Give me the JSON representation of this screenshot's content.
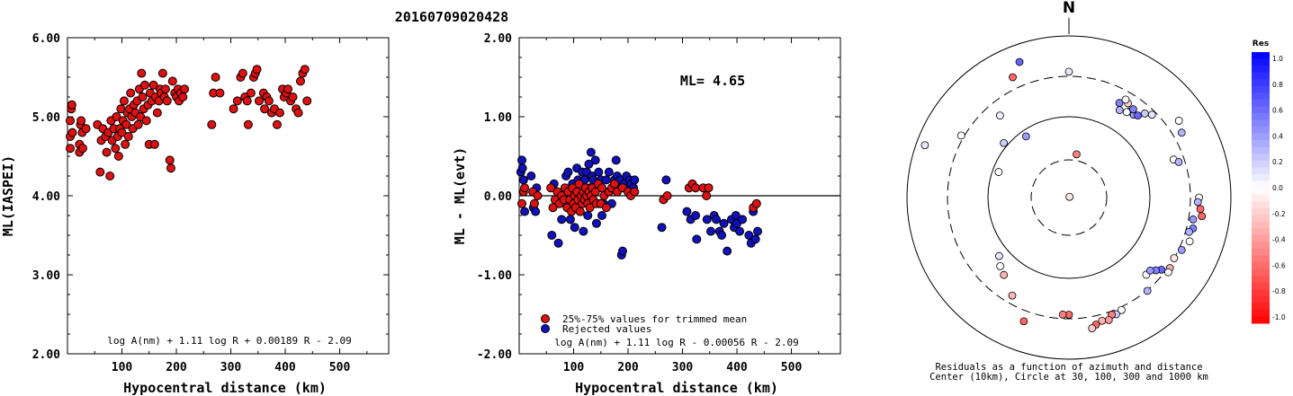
{
  "event_title": "20160709020428",
  "chart_data": [
    {
      "type": "scatter",
      "panel": "left",
      "xlabel": "Hypocentral distance (km)",
      "ylabel": "ML(IASPEI)",
      "xlim": [
        0,
        590
      ],
      "ylim": [
        2.0,
        6.0
      ],
      "x_ticks": [
        "100",
        "200",
        "300",
        "400",
        "500"
      ],
      "y_ticks": [
        "2.00",
        "3.00",
        "4.00",
        "5.00",
        "6.00"
      ],
      "formula": "log A(nm) + 1.11 log R + 0.00189 R - 2.09",
      "point_color": "#dd1111",
      "points": [
        [
          5,
          4.6
        ],
        [
          5,
          4.75
        ],
        [
          5,
          4.95
        ],
        [
          7,
          5.1
        ],
        [
          8,
          5.15
        ],
        [
          9,
          4.8
        ],
        [
          22,
          4.55
        ],
        [
          22,
          4.65
        ],
        [
          24,
          4.9
        ],
        [
          25,
          4.95
        ],
        [
          27,
          4.8
        ],
        [
          28,
          4.6
        ],
        [
          34,
          4.85
        ],
        [
          55,
          4.9
        ],
        [
          60,
          4.3
        ],
        [
          62,
          4.7
        ],
        [
          65,
          4.85
        ],
        [
          70,
          4.75
        ],
        [
          72,
          4.55
        ],
        [
          75,
          4.8
        ],
        [
          78,
          4.25
        ],
        [
          80,
          4.95
        ],
        [
          82,
          4.7
        ],
        [
          85,
          4.85
        ],
        [
          88,
          4.6
        ],
        [
          90,
          5.0
        ],
        [
          92,
          4.75
        ],
        [
          94,
          4.5
        ],
        [
          96,
          4.85
        ],
        [
          98,
          5.1
        ],
        [
          100,
          4.8
        ],
        [
          102,
          4.95
        ],
        [
          104,
          5.2
        ],
        [
          106,
          4.65
        ],
        [
          108,
          4.9
        ],
        [
          110,
          5.05
        ],
        [
          112,
          4.75
        ],
        [
          114,
          5.1
        ],
        [
          116,
          5.3
        ],
        [
          118,
          5.0
        ],
        [
          120,
          4.85
        ],
        [
          122,
          5.15
        ],
        [
          125,
          5.05
        ],
        [
          128,
          5.2
        ],
        [
          130,
          4.9
        ],
        [
          132,
          5.35
        ],
        [
          134,
          5.0
        ],
        [
          136,
          5.55
        ],
        [
          138,
          5.25
        ],
        [
          140,
          5.1
        ],
        [
          142,
          5.4
        ],
        [
          145,
          4.95
        ],
        [
          148,
          5.15
        ],
        [
          150,
          4.65
        ],
        [
          152,
          5.3
        ],
        [
          155,
          5.2
        ],
        [
          158,
          5.4
        ],
        [
          160,
          4.65
        ],
        [
          162,
          5.25
        ],
        [
          165,
          5.05
        ],
        [
          168,
          5.2
        ],
        [
          170,
          5.35
        ],
        [
          172,
          5.3
        ],
        [
          175,
          5.55
        ],
        [
          178,
          5.25
        ],
        [
          180,
          5.35
        ],
        [
          183,
          5.2
        ],
        [
          188,
          4.45
        ],
        [
          190,
          4.35
        ],
        [
          193,
          5.45
        ],
        [
          197,
          5.3
        ],
        [
          200,
          5.25
        ],
        [
          203,
          5.35
        ],
        [
          205,
          5.2
        ],
        [
          208,
          5.3
        ],
        [
          212,
          5.25
        ],
        [
          215,
          5.35
        ],
        [
          265,
          4.9
        ],
        [
          268,
          5.3
        ],
        [
          272,
          5.5
        ],
        [
          280,
          5.3
        ],
        [
          305,
          5.1
        ],
        [
          312,
          5.2
        ],
        [
          318,
          5.5
        ],
        [
          322,
          5.55
        ],
        [
          326,
          5.25
        ],
        [
          330,
          5.2
        ],
        [
          332,
          4.9
        ],
        [
          337,
          5.3
        ],
        [
          342,
          5.5
        ],
        [
          345,
          5.55
        ],
        [
          348,
          5.6
        ],
        [
          352,
          5.2
        ],
        [
          360,
          5.3
        ],
        [
          362,
          5.1
        ],
        [
          366,
          5.25
        ],
        [
          370,
          5.2
        ],
        [
          375,
          5.05
        ],
        [
          380,
          5.1
        ],
        [
          385,
          4.9
        ],
        [
          390,
          5.05
        ],
        [
          395,
          5.35
        ],
        [
          398,
          5.25
        ],
        [
          402,
          5.3
        ],
        [
          405,
          5.35
        ],
        [
          410,
          5.2
        ],
        [
          414,
          5.25
        ],
        [
          420,
          5.1
        ],
        [
          424,
          5.05
        ],
        [
          428,
          5.45
        ],
        [
          432,
          5.55
        ],
        [
          436,
          5.6
        ],
        [
          440,
          5.2
        ]
      ]
    },
    {
      "type": "scatter",
      "panel": "middle",
      "xlabel": "Hypocentral distance (km)",
      "ylabel": "ML - ML(evt)",
      "xlim": [
        0,
        590
      ],
      "ylim": [
        -2.0,
        2.0
      ],
      "x_ticks": [
        "100",
        "200",
        "300",
        "400",
        "500"
      ],
      "y_ticks": [
        "-2.00",
        "-1.00",
        "0.00",
        "1.00",
        "2.00"
      ],
      "ml_label": "ML= 4.65",
      "formula": "log A(nm) + 1.11 log R - 0.00056 R - 2.09",
      "legend": [
        {
          "label": "25%-75% values for trimmed mean",
          "color": "#dd1111"
        },
        {
          "label": "Rejected values",
          "color": "#1111bb"
        }
      ],
      "trimmed": [
        [
          5,
          -0.1
        ],
        [
          8,
          0.05
        ],
        [
          10,
          0.1
        ],
        [
          25,
          0.05
        ],
        [
          28,
          -0.1
        ],
        [
          34,
          0.0
        ],
        [
          58,
          0.1
        ],
        [
          62,
          -0.15
        ],
        [
          66,
          -0.05
        ],
        [
          70,
          0.05
        ],
        [
          74,
          -0.1
        ],
        [
          78,
          0.0
        ],
        [
          82,
          -0.05
        ],
        [
          84,
          0.1
        ],
        [
          88,
          -0.15
        ],
        [
          90,
          0.05
        ],
        [
          93,
          -0.05
        ],
        [
          96,
          -0.2
        ],
        [
          98,
          0.1
        ],
        [
          100,
          -0.1
        ],
        [
          102,
          0.0
        ],
        [
          104,
          -0.15
        ],
        [
          106,
          0.05
        ],
        [
          108,
          -0.05
        ],
        [
          110,
          0.15
        ],
        [
          112,
          -0.2
        ],
        [
          114,
          0.0
        ],
        [
          116,
          -0.1
        ],
        [
          118,
          0.05
        ],
        [
          120,
          -0.05
        ],
        [
          122,
          0.1
        ],
        [
          124,
          0.0
        ],
        [
          126,
          -0.1
        ],
        [
          128,
          0.05
        ],
        [
          130,
          -0.15
        ],
        [
          132,
          0.0
        ],
        [
          134,
          0.1
        ],
        [
          136,
          -0.05
        ],
        [
          140,
          0.05
        ],
        [
          142,
          -0.1
        ],
        [
          145,
          0.15
        ],
        [
          150,
          -0.1
        ],
        [
          152,
          0.1
        ],
        [
          156,
          0.0
        ],
        [
          160,
          -0.15
        ],
        [
          165,
          0.05
        ],
        [
          170,
          0.1
        ],
        [
          175,
          0.15
        ],
        [
          180,
          0.05
        ],
        [
          190,
          0.1
        ],
        [
          200,
          0.05
        ],
        [
          205,
          0.0
        ],
        [
          212,
          0.05
        ],
        [
          265,
          -0.05
        ],
        [
          272,
          0.0
        ],
        [
          312,
          0.1
        ],
        [
          318,
          0.15
        ],
        [
          324,
          0.1
        ],
        [
          338,
          0.1
        ],
        [
          344,
          0.0
        ],
        [
          348,
          0.1
        ],
        [
          430,
          -0.15
        ],
        [
          436,
          -0.1
        ]
      ],
      "rejected": [
        [
          3,
          0.3
        ],
        [
          5,
          0.45
        ],
        [
          6,
          0.35
        ],
        [
          8,
          0.2
        ],
        [
          10,
          -0.2
        ],
        [
          22,
          0.25
        ],
        [
          26,
          -0.15
        ],
        [
          30,
          -0.2
        ],
        [
          32,
          0.1
        ],
        [
          60,
          -0.5
        ],
        [
          64,
          0.15
        ],
        [
          72,
          -0.6
        ],
        [
          78,
          -0.3
        ],
        [
          86,
          0.25
        ],
        [
          90,
          0.3
        ],
        [
          94,
          -0.3
        ],
        [
          98,
          0.15
        ],
        [
          102,
          -0.4
        ],
        [
          106,
          0.35
        ],
        [
          108,
          0.2
        ],
        [
          112,
          -0.2
        ],
        [
          116,
          0.3
        ],
        [
          118,
          -0.45
        ],
        [
          120,
          0.2
        ],
        [
          124,
          0.3
        ],
        [
          126,
          -0.25
        ],
        [
          128,
          0.4
        ],
        [
          130,
          0.1
        ],
        [
          132,
          0.55
        ],
        [
          134,
          0.25
        ],
        [
          136,
          0.2
        ],
        [
          140,
          0.45
        ],
        [
          142,
          -0.35
        ],
        [
          146,
          0.3
        ],
        [
          148,
          -0.1
        ],
        [
          150,
          0.2
        ],
        [
          152,
          -0.25
        ],
        [
          155,
          -0.1
        ],
        [
          158,
          0.05
        ],
        [
          160,
          0.2
        ],
        [
          165,
          0.3
        ],
        [
          170,
          -0.1
        ],
        [
          175,
          0.2
        ],
        [
          178,
          0.45
        ],
        [
          180,
          0.25
        ],
        [
          182,
          0.1
        ],
        [
          185,
          0.2
        ],
        [
          188,
          -0.75
        ],
        [
          190,
          -0.7
        ],
        [
          193,
          0.15
        ],
        [
          197,
          0.25
        ],
        [
          200,
          0.1
        ],
        [
          203,
          0.2
        ],
        [
          206,
          0.15
        ],
        [
          210,
          0.1
        ],
        [
          212,
          0.2
        ],
        [
          262,
          -0.4
        ],
        [
          270,
          0.2
        ],
        [
          308,
          -0.2
        ],
        [
          315,
          -0.3
        ],
        [
          324,
          -0.25
        ],
        [
          326,
          -0.55
        ],
        [
          345,
          -0.3
        ],
        [
          352,
          -0.45
        ],
        [
          358,
          -0.25
        ],
        [
          362,
          -0.3
        ],
        [
          368,
          -0.45
        ],
        [
          372,
          -0.5
        ],
        [
          376,
          -0.35
        ],
        [
          382,
          -0.7
        ],
        [
          390,
          -0.3
        ],
        [
          395,
          -0.4
        ],
        [
          398,
          -0.25
        ],
        [
          400,
          -0.35
        ],
        [
          405,
          -0.45
        ],
        [
          410,
          -0.3
        ],
        [
          422,
          -0.5
        ],
        [
          426,
          -0.6
        ],
        [
          430,
          -0.2
        ],
        [
          434,
          -0.55
        ],
        [
          438,
          -0.45
        ]
      ]
    },
    {
      "type": "scatter",
      "panel": "right",
      "subtype": "polar",
      "north_label": "N",
      "caption_line1": "Residuals as a function of azimuth and distance",
      "caption_line2": "Center (10km), Circle at 30, 100, 300 and 1000 km",
      "radius_unit": "km",
      "circle_radii_km": [
        30,
        100,
        300,
        1000
      ],
      "circle_styles": [
        "dashed",
        "solid",
        "dashed",
        "solid"
      ],
      "points_azimuth_distance_residual": [
        [
          40,
          5,
          -0.1
        ],
        [
          10,
          40,
          -0.5
        ],
        [
          -35,
          90,
          0.4
        ],
        [
          -50,
          120,
          0.2
        ],
        [
          -40,
          230,
          0.05
        ],
        [
          0,
          380,
          0.1
        ],
        [
          -70,
          850,
          0.1
        ],
        [
          -20,
          700,
          0.6
        ],
        [
          -25,
          500,
          -0.6
        ],
        [
          35,
          220,
          0.6
        ],
        [
          28,
          230,
          0.5
        ],
        [
          30,
          200,
          0.3
        ],
        [
          34,
          210,
          0.0
        ],
        [
          38,
          220,
          0.4
        ],
        [
          32,
          250,
          -0.2
        ],
        [
          42,
          260,
          0.2
        ],
        [
          45,
          280,
          0.1
        ],
        [
          40,
          230,
          0.6
        ],
        [
          36,
          240,
          0.5
        ],
        [
          30,
          260,
          0.0
        ],
        [
          55,
          520,
          0.0
        ],
        [
          60,
          450,
          0.3
        ],
        [
          70,
          250,
          0.0
        ],
        [
          72,
          270,
          0.3
        ],
        [
          90,
          450,
          0.0
        ],
        [
          92,
          430,
          0.3
        ],
        [
          95,
          480,
          -0.6
        ],
        [
          98,
          520,
          -0.6
        ],
        [
          100,
          380,
          0.4
        ],
        [
          104,
          410,
          0.5
        ],
        [
          106,
          360,
          0.3
        ],
        [
          110,
          420,
          0.0
        ],
        [
          115,
          350,
          0.4
        ],
        [
          120,
          300,
          -0.1
        ],
        [
          125,
          330,
          -0.3
        ],
        [
          128,
          280,
          0.6
        ],
        [
          130,
          260,
          0.5
        ],
        [
          135,
          240,
          0.0
        ],
        [
          140,
          310,
          0.3
        ],
        [
          132,
          240,
          0.4
        ],
        [
          127,
          350,
          0.0
        ],
        [
          155,
          350,
          0.0
        ],
        [
          158,
          380,
          0.2
        ],
        [
          160,
          360,
          -0.5
        ],
        [
          162,
          430,
          -0.4
        ],
        [
          165,
          410,
          -0.3
        ],
        [
          168,
          450,
          -0.6
        ],
        [
          170,
          500,
          -0.2
        ],
        [
          180,
          280,
          -0.6
        ],
        [
          183,
          280,
          -0.5
        ],
        [
          200,
          480,
          -0.6
        ],
        [
          210,
          260,
          -0.3
        ],
        [
          220,
          200,
          -0.3
        ],
        [
          225,
          180,
          0.0
        ],
        [
          230,
          150,
          0.1
        ],
        [
          290,
          90,
          0.0
        ],
        [
          300,
          350,
          0.0
        ]
      ]
    }
  ],
  "colorbar": {
    "title": "Res",
    "tick_labels": [
      "1.0",
      "0.8",
      "0.6",
      "0.4",
      "0.2",
      "0.0",
      "-0.2",
      "-0.4",
      "-0.6",
      "-0.8",
      "-1.0"
    ],
    "high_color": "#0000ff",
    "mid_color": "#ffffff",
    "low_color": "#ff0000"
  }
}
